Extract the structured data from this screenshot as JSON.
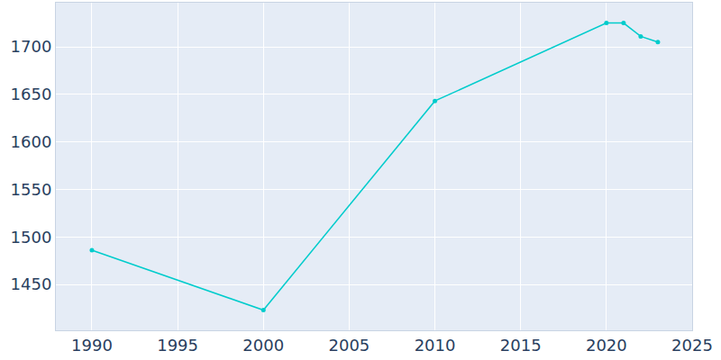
{
  "chart_data": {
    "type": "line",
    "x": [
      1990,
      2000,
      2010,
      2020,
      2021,
      2022,
      2023
    ],
    "values": [
      1486,
      1423,
      1643,
      1725,
      1725,
      1711,
      1705
    ],
    "color": "#00cccc",
    "marker": "circle",
    "xlim": [
      1987.9,
      2025
    ],
    "ylim": [
      1401.7,
      1746.4
    ],
    "xticks": [
      1990,
      1995,
      2000,
      2005,
      2010,
      2015,
      2020,
      2025
    ],
    "yticks": [
      1450,
      1500,
      1550,
      1600,
      1650,
      1700
    ],
    "grid": true
  }
}
